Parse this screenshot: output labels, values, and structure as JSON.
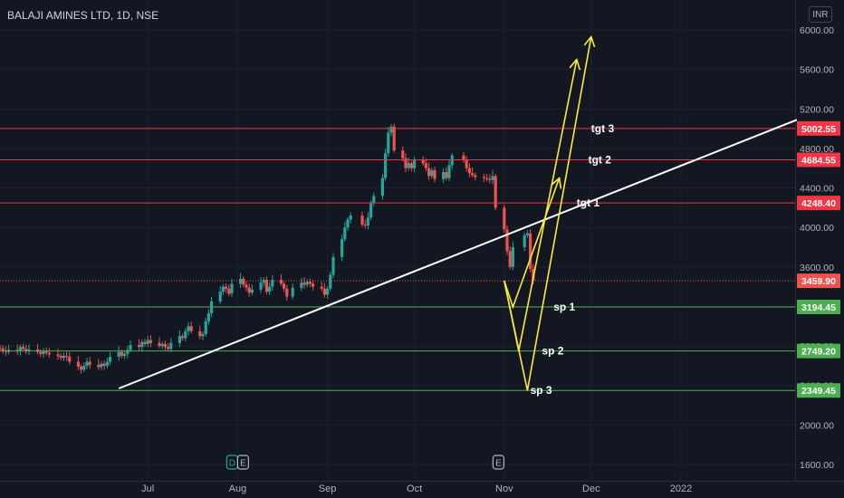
{
  "header": {
    "symbol": "BALAJI AMINES LTD",
    "interval": "1D",
    "exchange": "NSE",
    "currency": "INR"
  },
  "colors": {
    "background": "#131722",
    "grid": "#1e222d",
    "axis_text": "#b2b5be",
    "up": "#26a69a",
    "down": "#ef5350",
    "trendline": "#ffffff",
    "projection": "#ffeb3b",
    "target_line": "#f23645",
    "support_line": "#4caf50",
    "target_label_bg": "#f23645",
    "support_label_bg": "#4caf50",
    "last_price_bg": "#ef5350",
    "event_badge": "#b2b5be",
    "dividend_badge": "#26a69a"
  },
  "chart_data": {
    "type": "candlestick",
    "title": "BALAJI AMINES LTD, 1D, NSE",
    "currency": "INR",
    "y_ticks": [
      1600,
      2000,
      2400,
      2800,
      3200,
      3600,
      4000,
      4400,
      4800,
      5200,
      5600,
      6000
    ],
    "ylim": [
      1550,
      6150
    ],
    "x_ticks": [
      "Jul",
      "Aug",
      "Sep",
      "Oct",
      "Nov",
      "Dec",
      "2022"
    ],
    "x_tick_dates": [
      "2021-07-01",
      "2021-08-01",
      "2021-09-01",
      "2021-10-01",
      "2021-11-01",
      "2021-12-01",
      "2022-01-01"
    ],
    "x_range": [
      "2021-05-11",
      "2022-02-10"
    ],
    "grid": true,
    "last_price": 3459.9,
    "price_levels": [
      {
        "label": "tgt 3",
        "price": 5002.55,
        "kind": "target",
        "price_label": "5002.55"
      },
      {
        "label": "tgt 2",
        "price": 4684.55,
        "kind": "target",
        "price_label": "4684.55"
      },
      {
        "label": "tgt 1",
        "price": 4248.4,
        "kind": "target",
        "price_label": "4248.40"
      },
      {
        "label": "sp 1",
        "price": 3194.45,
        "kind": "support",
        "price_label": "3194.45"
      },
      {
        "label": "sp 2",
        "price": 2749.2,
        "kind": "support",
        "price_label": "2749.20"
      },
      {
        "label": "sp 3",
        "price": 2349.45,
        "kind": "support",
        "price_label": "2349.45"
      }
    ],
    "last_price_label": "3459.90",
    "trendline": {
      "from": [
        "2021-06-21",
        2370
      ],
      "to": [
        "2022-02-10",
        5090
      ]
    },
    "projections": [
      {
        "points": [
          [
            "2021-11-01",
            3460
          ],
          [
            "2021-11-04",
            3194
          ],
          [
            "2021-11-20",
            4500
          ]
        ]
      },
      {
        "points": [
          [
            "2021-11-01",
            3460
          ],
          [
            "2021-11-06",
            2749
          ],
          [
            "2021-11-26",
            5700
          ]
        ]
      },
      {
        "points": [
          [
            "2021-11-01",
            3460
          ],
          [
            "2021-11-09",
            2349
          ],
          [
            "2021-12-01",
            5930
          ]
        ]
      }
    ],
    "event_markers": [
      {
        "date": "2021-08-01",
        "labels": [
          "D",
          "E"
        ]
      },
      {
        "date": "2021-10-30",
        "labels": [
          "E"
        ]
      }
    ],
    "candles_daily_close": [
      [
        "2021-05-11",
        2775
      ],
      [
        "2021-05-12",
        2755
      ],
      [
        "2021-05-13",
        2740
      ],
      [
        "2021-05-14",
        2760
      ],
      [
        "2021-05-17",
        2745
      ],
      [
        "2021-05-18",
        2790
      ],
      [
        "2021-05-19",
        2770
      ],
      [
        "2021-05-20",
        2750
      ],
      [
        "2021-05-21",
        2765
      ],
      [
        "2021-05-24",
        2740
      ],
      [
        "2021-05-25",
        2720
      ],
      [
        "2021-05-26",
        2745
      ],
      [
        "2021-05-27",
        2730
      ],
      [
        "2021-05-28",
        2715
      ],
      [
        "2021-05-31",
        2700
      ],
      [
        "2021-06-01",
        2680
      ],
      [
        "2021-06-02",
        2700
      ],
      [
        "2021-06-03",
        2690
      ],
      [
        "2021-06-04",
        2640
      ],
      [
        "2021-06-07",
        2590
      ],
      [
        "2021-06-08",
        2560
      ],
      [
        "2021-06-09",
        2600
      ],
      [
        "2021-06-10",
        2640
      ],
      [
        "2021-06-11",
        2610
      ],
      [
        "2021-06-14",
        2585
      ],
      [
        "2021-06-15",
        2620
      ],
      [
        "2021-06-16",
        2600
      ],
      [
        "2021-06-17",
        2640
      ],
      [
        "2021-06-18",
        2690
      ],
      [
        "2021-06-21",
        2740
      ],
      [
        "2021-06-22",
        2700
      ],
      [
        "2021-06-23",
        2720
      ],
      [
        "2021-06-24",
        2760
      ],
      [
        "2021-06-25",
        2810
      ],
      [
        "2021-06-28",
        2790
      ],
      [
        "2021-06-29",
        2840
      ],
      [
        "2021-06-30",
        2820
      ],
      [
        "2021-07-01",
        2860
      ],
      [
        "2021-07-02",
        2830
      ],
      [
        "2021-07-05",
        2800
      ],
      [
        "2021-07-06",
        2820
      ],
      [
        "2021-07-07",
        2790
      ],
      [
        "2021-07-08",
        2770
      ],
      [
        "2021-07-09",
        2830
      ],
      [
        "2021-07-12",
        2900
      ],
      [
        "2021-07-13",
        2880
      ],
      [
        "2021-07-14",
        2950
      ],
      [
        "2021-07-15",
        3000
      ],
      [
        "2021-07-16",
        2950
      ],
      [
        "2021-07-19",
        2900
      ],
      [
        "2021-07-20",
        2920
      ],
      [
        "2021-07-21",
        3050
      ],
      [
        "2021-07-22",
        3130
      ],
      [
        "2021-07-23",
        3250
      ],
      [
        "2021-07-26",
        3350
      ],
      [
        "2021-07-27",
        3400
      ],
      [
        "2021-07-28",
        3380
      ],
      [
        "2021-07-29",
        3330
      ],
      [
        "2021-07-30",
        3430
      ],
      [
        "2021-08-02",
        3480
      ],
      [
        "2021-08-03",
        3420
      ],
      [
        "2021-08-04",
        3390
      ],
      [
        "2021-08-05",
        3340
      ],
      [
        "2021-08-06",
        3370
      ],
      [
        "2021-08-09",
        3440
      ],
      [
        "2021-08-10",
        3470
      ],
      [
        "2021-08-11",
        3350
      ],
      [
        "2021-08-12",
        3400
      ],
      [
        "2021-08-13",
        3470
      ],
      [
        "2021-08-16",
        3430
      ],
      [
        "2021-08-17",
        3380
      ],
      [
        "2021-08-18",
        3300
      ],
      [
        "2021-08-20",
        3390
      ],
      [
        "2021-08-23",
        3440
      ],
      [
        "2021-08-24",
        3420
      ],
      [
        "2021-08-25",
        3450
      ],
      [
        "2021-08-26",
        3430
      ],
      [
        "2021-08-27",
        3400
      ],
      [
        "2021-08-30",
        3380
      ],
      [
        "2021-08-31",
        3320
      ],
      [
        "2021-09-01",
        3380
      ],
      [
        "2021-09-02",
        3520
      ],
      [
        "2021-09-03",
        3700
      ],
      [
        "2021-09-06",
        3880
      ],
      [
        "2021-09-07",
        4000
      ],
      [
        "2021-09-08",
        4080
      ],
      [
        "2021-09-09",
        4120
      ],
      [
        "2021-09-13",
        4030
      ],
      [
        "2021-09-14",
        4020
      ],
      [
        "2021-09-15",
        4100
      ],
      [
        "2021-09-16",
        4250
      ],
      [
        "2021-09-17",
        4320
      ],
      [
        "2021-09-20",
        4500
      ],
      [
        "2021-09-21",
        4750
      ],
      [
        "2021-09-22",
        4960
      ],
      [
        "2021-09-23",
        5020
      ],
      [
        "2021-09-24",
        4780
      ],
      [
        "2021-09-27",
        4700
      ],
      [
        "2021-09-28",
        4600
      ],
      [
        "2021-09-29",
        4650
      ],
      [
        "2021-09-30",
        4600
      ],
      [
        "2021-10-01",
        4680
      ],
      [
        "2021-10-04",
        4650
      ],
      [
        "2021-10-05",
        4600
      ],
      [
        "2021-10-06",
        4520
      ],
      [
        "2021-10-07",
        4580
      ],
      [
        "2021-10-08",
        4490
      ],
      [
        "2021-10-11",
        4560
      ],
      [
        "2021-10-12",
        4500
      ],
      [
        "2021-10-13",
        4630
      ],
      [
        "2021-10-14",
        4730
      ],
      [
        "2021-10-18",
        4680
      ],
      [
        "2021-10-19",
        4600
      ],
      [
        "2021-10-20",
        4550
      ],
      [
        "2021-10-21",
        4530
      ],
      [
        "2021-10-22",
        4510
      ],
      [
        "2021-10-25",
        4500
      ],
      [
        "2021-10-26",
        4490
      ],
      [
        "2021-10-27",
        4480
      ],
      [
        "2021-10-28",
        4520
      ],
      [
        "2021-10-29",
        4200
      ],
      [
        "2021-11-01",
        3980
      ],
      [
        "2021-11-02",
        3760
      ],
      [
        "2021-11-03",
        3600
      ],
      [
        "2021-11-04",
        3800
      ],
      [
        "2021-11-08",
        3920
      ],
      [
        "2021-11-09",
        3940
      ],
      [
        "2021-11-10",
        3580
      ],
      [
        "2021-11-11",
        3460
      ]
    ]
  }
}
